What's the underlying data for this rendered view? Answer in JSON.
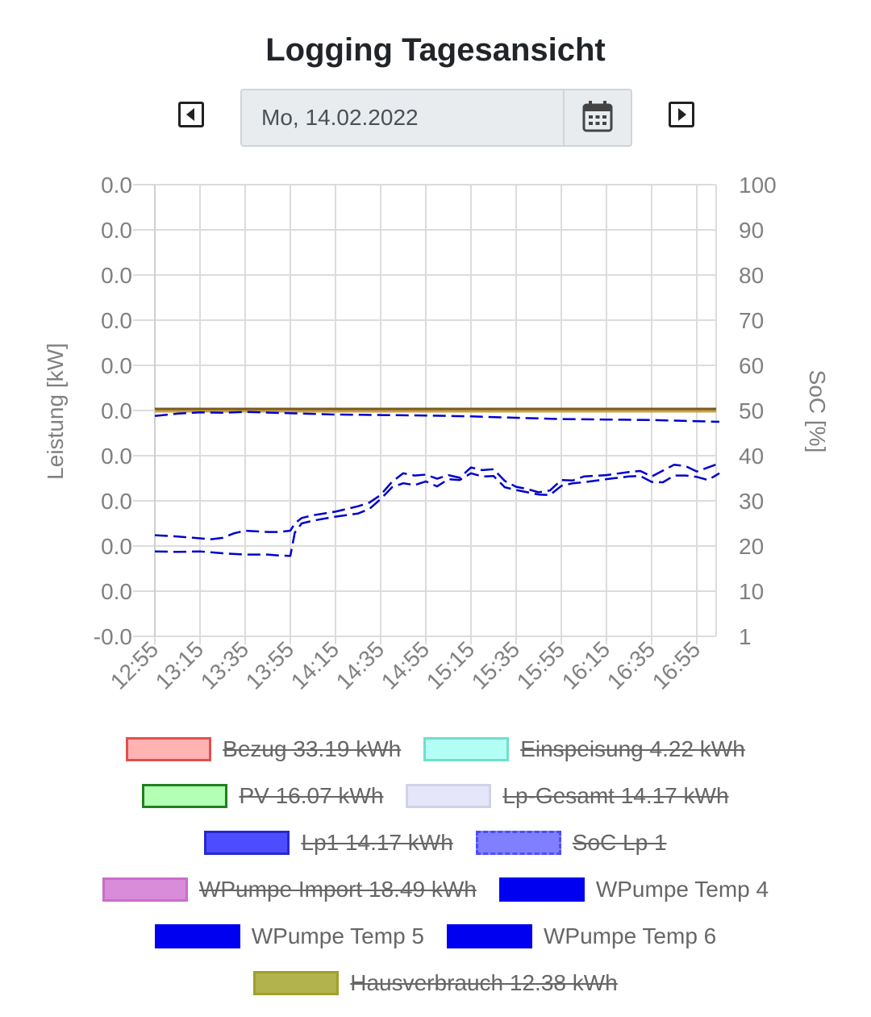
{
  "header": {
    "title": "Logging Tagesansicht"
  },
  "datepicker": {
    "value": "Mo, 14.02.2022",
    "prev_icon": "caret-left-icon",
    "next_icon": "caret-right-icon",
    "calendar_icon": "calendar-icon"
  },
  "chart_data": {
    "type": "line",
    "x": [
      "12:55",
      "13:15",
      "13:35",
      "13:55",
      "14:15",
      "14:35",
      "14:55",
      "15:15",
      "15:35",
      "15:55",
      "16:15",
      "16:35",
      "16:55"
    ],
    "y_left": {
      "label": "Leistung [kW]",
      "ticks": [
        "-0.0",
        "0.0",
        "0.0",
        "0.0",
        "0.0",
        "0.0",
        "0.0",
        "0.0",
        "0.0",
        "0.0",
        "0.0"
      ]
    },
    "y_right": {
      "label": "SoC [%]",
      "ticks": [
        "1",
        "10",
        "20",
        "30",
        "40",
        "50",
        "60",
        "70",
        "80",
        "90",
        "100"
      ],
      "range": [
        0,
        100
      ]
    },
    "grid": true,
    "baseline_color": "#c8a04a",
    "series": [
      {
        "name": "WPumpe Temp 4",
        "color": "#0000cc",
        "dashed": true,
        "points": [
          [
            0,
            48.8
          ],
          [
            10,
            49.3
          ],
          [
            20,
            49.6
          ],
          [
            30,
            49.5
          ],
          [
            40,
            49.7
          ],
          [
            60,
            49.4
          ],
          [
            80,
            49.1
          ],
          [
            100,
            49
          ],
          [
            120,
            48.9
          ],
          [
            140,
            48.7
          ],
          [
            160,
            48.4
          ],
          [
            180,
            48.1
          ],
          [
            200,
            48
          ],
          [
            220,
            47.9
          ],
          [
            235,
            47.7
          ],
          [
            250,
            47.5
          ]
        ]
      },
      {
        "name": "WPumpe Temp 5",
        "color": "#0000cc",
        "dashed": true,
        "points": [
          [
            0,
            22.4
          ],
          [
            10,
            22.1
          ],
          [
            20,
            21.7
          ],
          [
            25,
            21.5
          ],
          [
            30,
            21.8
          ],
          [
            35,
            22.8
          ],
          [
            40,
            23.4
          ],
          [
            50,
            23.1
          ],
          [
            55,
            23.1
          ],
          [
            60,
            23.4
          ],
          [
            62,
            25
          ],
          [
            65,
            26.2
          ],
          [
            70,
            26.8
          ],
          [
            80,
            27.6
          ],
          [
            90,
            28.8
          ],
          [
            95,
            29.6
          ],
          [
            100,
            31.3
          ],
          [
            105,
            34.2
          ],
          [
            110,
            36.1
          ],
          [
            115,
            35.6
          ],
          [
            120,
            35.8
          ],
          [
            125,
            34.9
          ],
          [
            130,
            35.7
          ],
          [
            135,
            35.1
          ],
          [
            140,
            37.4
          ],
          [
            145,
            36.8
          ],
          [
            150,
            37
          ],
          [
            155,
            34.4
          ],
          [
            160,
            33.1
          ],
          [
            165,
            32.6
          ],
          [
            170,
            31.9
          ],
          [
            175,
            32.3
          ],
          [
            180,
            34.6
          ],
          [
            185,
            34.5
          ],
          [
            190,
            35.4
          ],
          [
            200,
            35.7
          ],
          [
            210,
            36.4
          ],
          [
            215,
            36.6
          ],
          [
            220,
            35.4
          ],
          [
            225,
            36.7
          ],
          [
            230,
            38
          ],
          [
            235,
            37.7
          ],
          [
            240,
            36.5
          ],
          [
            245,
            37.4
          ],
          [
            250,
            38.3
          ]
        ]
      },
      {
        "name": "WPumpe Temp 6",
        "color": "#0000cc",
        "dashed": true,
        "points": [
          [
            0,
            18.8
          ],
          [
            10,
            18.7
          ],
          [
            20,
            18.8
          ],
          [
            30,
            18.4
          ],
          [
            40,
            18.1
          ],
          [
            50,
            18.1
          ],
          [
            55,
            17.9
          ],
          [
            60,
            17.8
          ],
          [
            62,
            23
          ],
          [
            65,
            25
          ],
          [
            70,
            25.6
          ],
          [
            80,
            26.5
          ],
          [
            90,
            27.2
          ],
          [
            95,
            28.2
          ],
          [
            100,
            30.4
          ],
          [
            105,
            33
          ],
          [
            110,
            33.9
          ],
          [
            115,
            33.5
          ],
          [
            120,
            34.3
          ],
          [
            125,
            33.2
          ],
          [
            130,
            34.8
          ],
          [
            135,
            34.6
          ],
          [
            140,
            36.1
          ],
          [
            145,
            35.4
          ],
          [
            150,
            35.5
          ],
          [
            155,
            33
          ],
          [
            160,
            32.4
          ],
          [
            165,
            31.9
          ],
          [
            170,
            31.4
          ],
          [
            175,
            31.3
          ],
          [
            180,
            33.3
          ],
          [
            185,
            33.9
          ],
          [
            190,
            34.1
          ],
          [
            200,
            34.8
          ],
          [
            210,
            35.4
          ],
          [
            215,
            35.5
          ],
          [
            220,
            34.2
          ],
          [
            225,
            34.1
          ],
          [
            230,
            35.6
          ],
          [
            235,
            35.6
          ],
          [
            240,
            35.3
          ],
          [
            245,
            34.6
          ],
          [
            250,
            36.1
          ]
        ]
      }
    ],
    "legend": [
      [
        {
          "label": "Bezug 33.19 kWh",
          "fill": "#ffb3b3",
          "border": "#e05050",
          "off": true,
          "dash": false
        },
        {
          "label": "Einspeisung 4.22 kWh",
          "fill": "#b3fff6",
          "border": "#6ee0c8",
          "off": true,
          "dash": false
        }
      ],
      [
        {
          "label": "PV 16.07 kWh",
          "fill": "#b3ffb3",
          "border": "#208020",
          "off": true,
          "dash": false
        },
        {
          "label": "Lp-Gesamt 14.17 kWh",
          "fill": "#e6e6fa",
          "border": "#d2d2e6",
          "off": true,
          "dash": false
        }
      ],
      [
        {
          "label": "Lp1 14.17 kWh",
          "fill": "#4d4dff",
          "border": "#2828cc",
          "off": true,
          "dash": false
        },
        {
          "label": "SoC Lp 1",
          "fill": "#8080ff",
          "border": "#4d4dff",
          "off": true,
          "dash": true
        }
      ],
      [
        {
          "label": "WPumpe Import 18.49 kWh",
          "fill": "#d98cd9",
          "border": "#c86ec8",
          "off": true,
          "dash": false
        },
        {
          "label": "WPumpe Temp 4",
          "fill": "#0000f0",
          "border": "#0000f0",
          "off": false,
          "dash": true
        }
      ],
      [
        {
          "label": "WPumpe Temp 5",
          "fill": "#0000f0",
          "border": "#0000f0",
          "off": false,
          "dash": true
        },
        {
          "label": "WPumpe Temp 6",
          "fill": "#0000f0",
          "border": "#0000f0",
          "off": false,
          "dash": true
        }
      ],
      [
        {
          "label": "Hausverbrauch 12.38 kWh",
          "fill": "#b3b34d",
          "border": "#a0a028",
          "off": true,
          "dash": false
        }
      ]
    ]
  }
}
